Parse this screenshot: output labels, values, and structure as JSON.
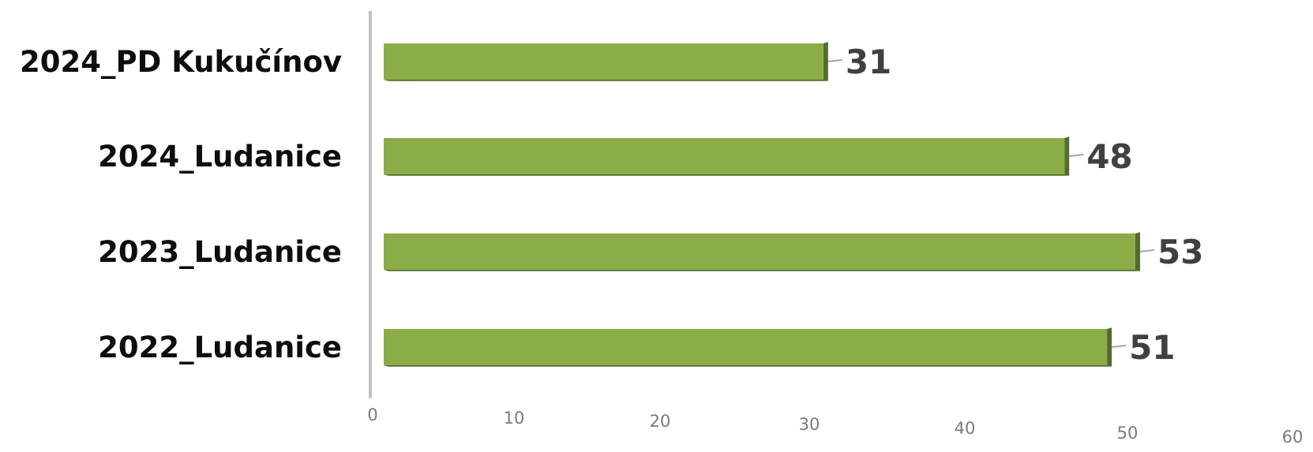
{
  "chart_data": {
    "type": "bar",
    "orientation": "horizontal",
    "categories": [
      "2024_PD Kukučínov",
      "2024_Ludanice",
      "2023_Ludanice",
      "2022_Ludanice"
    ],
    "values": [
      31,
      48,
      53,
      51
    ],
    "data_labels": [
      "31",
      "48",
      "53",
      "51"
    ],
    "xlim": [
      0,
      60
    ],
    "x_ticks": [
      "0",
      "10",
      "20",
      "30",
      "40",
      "50",
      "60"
    ],
    "title": "",
    "xlabel": "",
    "ylabel": "",
    "grid": false,
    "legend": "none",
    "colors": {
      "bar_front": "#8bad48",
      "bar_side": "#556b2f",
      "axis": "#c0c0c0",
      "leader": "#a6a6a6",
      "data_label": "#404040",
      "category_label": "#0d0d0d",
      "tick_label": "#7a7a7a"
    }
  }
}
